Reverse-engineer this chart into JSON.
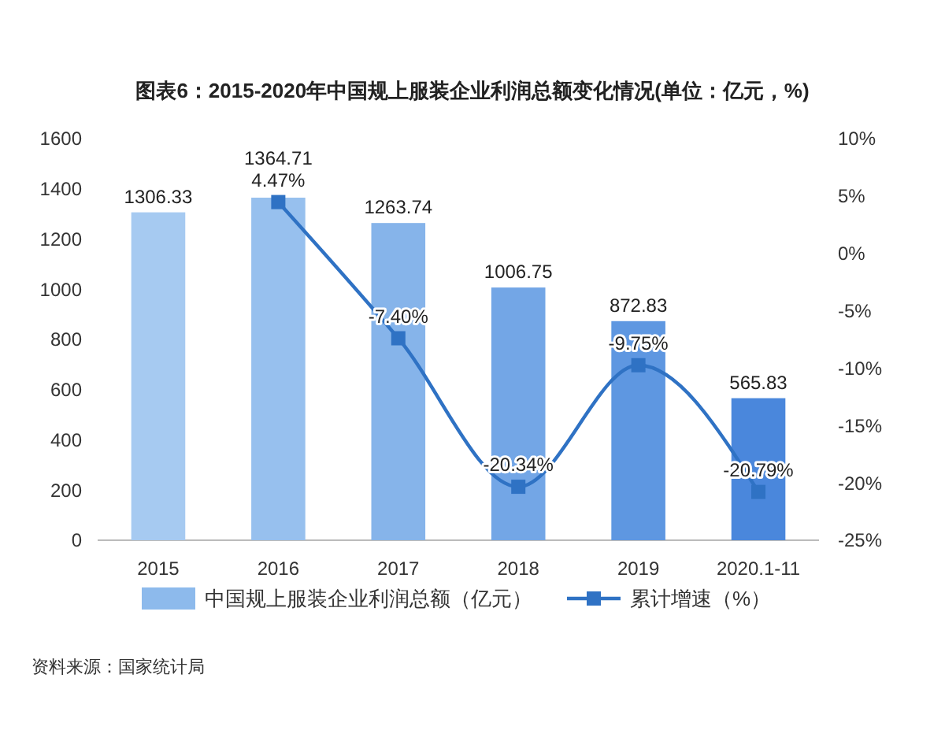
{
  "chart_data": {
    "type": "bar",
    "title": "图表6：2015-2020年中国规上服装企业利润总额变化情况(单位：亿元，%)",
    "categories": [
      "2015",
      "2016",
      "2017",
      "2018",
      "2019",
      "2020.1-11"
    ],
    "series": [
      {
        "name": "中国规上服装企业利润总额（亿元）",
        "color": "#8dbaec",
        "colors": [
          "#a6caf1",
          "#97c0ee",
          "#86b4ea",
          "#73a6e6",
          "#5e97e1",
          "#4a87dc"
        ],
        "values": [
          1306.33,
          1364.71,
          1263.74,
          1006.75,
          872.83,
          565.83
        ],
        "value_labels": [
          "1306.33",
          "1364.71",
          "1263.74",
          "1006.75",
          "872.83",
          "565.83"
        ]
      },
      {
        "name": "累计增速（%）",
        "type": "line",
        "axis": "y2",
        "color": "#2f72c4",
        "values": [
          null,
          4.47,
          -7.4,
          -20.34,
          -9.75,
          -20.79
        ],
        "value_labels": [
          null,
          "4.47%",
          "-7.40%",
          "-20.34%",
          "-9.75%",
          "-20.79%"
        ]
      }
    ],
    "ylim": [
      0,
      1600
    ],
    "yticks": [
      0,
      200,
      400,
      600,
      800,
      1000,
      1200,
      1400,
      1600
    ],
    "y2lim": [
      -25,
      10
    ],
    "y2ticks": [
      {
        "value": -25,
        "label": "-25%"
      },
      {
        "value": -20,
        "label": "-20%"
      },
      {
        "value": -15,
        "label": "-15%"
      },
      {
        "value": -10,
        "label": "-10%"
      },
      {
        "value": -5,
        "label": "-5%"
      },
      {
        "value": 0,
        "label": "0%"
      },
      {
        "value": 5,
        "label": "5%"
      },
      {
        "value": 10,
        "label": "10%"
      }
    ],
    "marker": "square",
    "legend": "bottom",
    "grid": false,
    "annotations": [
      "资料来源：国家统计局"
    ]
  }
}
